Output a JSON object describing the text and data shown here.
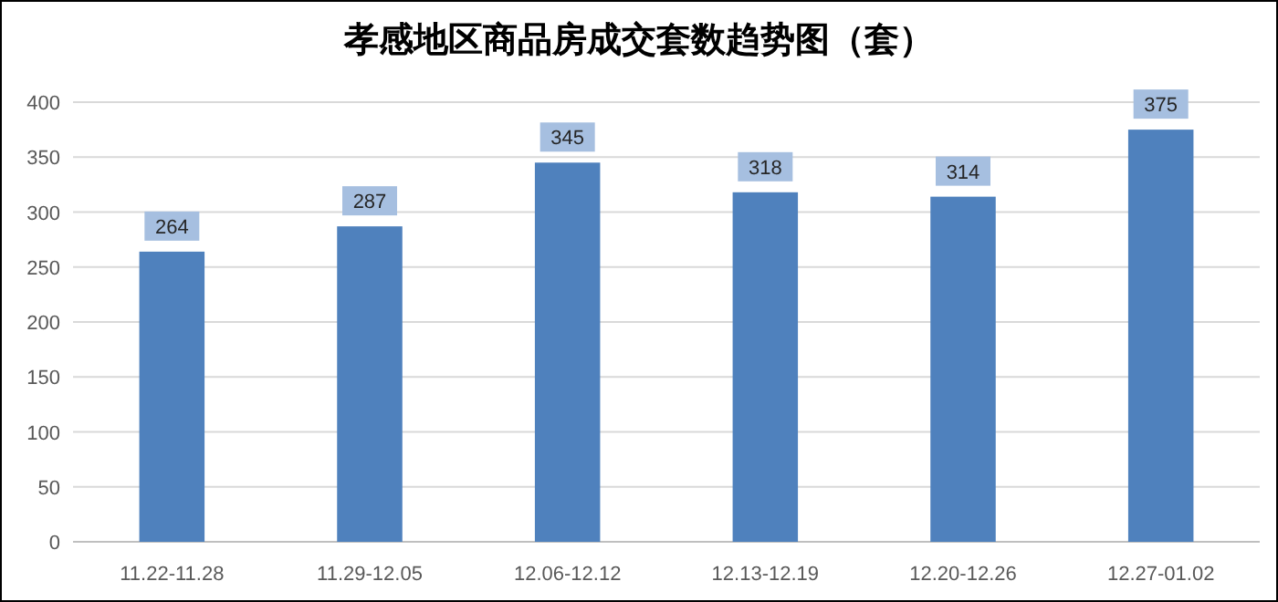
{
  "chart_data": {
    "type": "bar",
    "title": "孝感地区商品房成交套数趋势图（套）",
    "categories": [
      "11.22-11.28",
      "11.29-12.05",
      "12.06-12.12",
      "12.13-12.19",
      "12.20-12.26",
      "12.27-01.02"
    ],
    "values": [
      264,
      287,
      345,
      318,
      314,
      375
    ],
    "color": "#4f81bd",
    "ylim": [
      0,
      400
    ],
    "yticks": [
      0,
      50,
      100,
      150,
      200,
      250,
      300,
      350,
      400
    ],
    "grid": "y",
    "data_labels": true
  }
}
